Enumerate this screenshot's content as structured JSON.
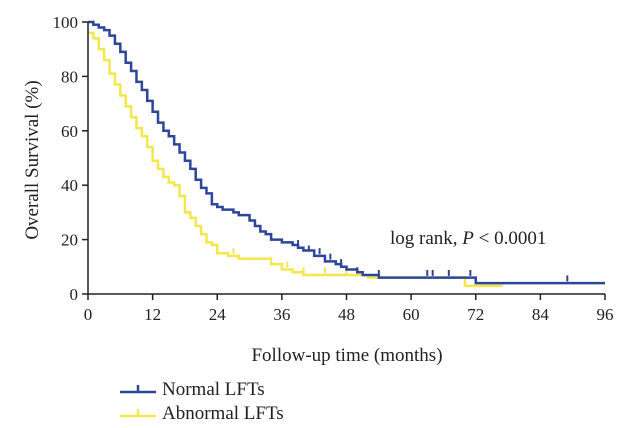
{
  "chart_data": {
    "type": "line",
    "ylabel": "Overall Survival (%)",
    "xlabel": "Follow-up time (months)",
    "xlim": [
      0,
      96
    ],
    "ylim": [
      0,
      100
    ],
    "x_ticks": [
      "0",
      "12",
      "24",
      "36",
      "48",
      "60",
      "72",
      "84",
      "96"
    ],
    "y_ticks": [
      "0",
      "20",
      "40",
      "60",
      "80",
      "100"
    ],
    "annotation": {
      "prefix": "log rank, ",
      "italic": "P",
      "suffix": " < 0.0001"
    },
    "series": [
      {
        "name": "Normal LFTs",
        "color": "#2e4699",
        "steps": [
          [
            0,
            100
          ],
          [
            1,
            99
          ],
          [
            2,
            98
          ],
          [
            3,
            97
          ],
          [
            4,
            95
          ],
          [
            5,
            92
          ],
          [
            6,
            89
          ],
          [
            7,
            85
          ],
          [
            8,
            82
          ],
          [
            9,
            78
          ],
          [
            10,
            75
          ],
          [
            11,
            71
          ],
          [
            12,
            67
          ],
          [
            13,
            63
          ],
          [
            14,
            60
          ],
          [
            15,
            58
          ],
          [
            16,
            55
          ],
          [
            17,
            52
          ],
          [
            18,
            49
          ],
          [
            19,
            46
          ],
          [
            20,
            42
          ],
          [
            21,
            39
          ],
          [
            22,
            37
          ],
          [
            23,
            33
          ],
          [
            24,
            32
          ],
          [
            25,
            31
          ],
          [
            27,
            30
          ],
          [
            28,
            29
          ],
          [
            30,
            27
          ],
          [
            31,
            25
          ],
          [
            32,
            23
          ],
          [
            33,
            22
          ],
          [
            34,
            20
          ],
          [
            36,
            19
          ],
          [
            38,
            18
          ],
          [
            39,
            17
          ],
          [
            40,
            16
          ],
          [
            42,
            14
          ],
          [
            44,
            12
          ],
          [
            46,
            11
          ],
          [
            47,
            10
          ],
          [
            48,
            9
          ],
          [
            50,
            8
          ],
          [
            51,
            7
          ],
          [
            54,
            6
          ],
          [
            72,
            4
          ],
          [
            96,
            4
          ]
        ],
        "censors": [
          [
            39,
            18
          ],
          [
            41,
            16
          ],
          [
            43,
            15
          ],
          [
            45,
            13
          ],
          [
            47,
            11
          ],
          [
            50,
            8
          ],
          [
            54,
            7
          ],
          [
            63,
            7
          ],
          [
            64,
            7
          ],
          [
            67,
            7
          ],
          [
            71,
            7
          ],
          [
            89,
            5
          ]
        ]
      },
      {
        "name": "Abnormal LFTs",
        "color": "#f2e84d",
        "steps": [
          [
            0,
            96
          ],
          [
            1,
            94
          ],
          [
            2,
            90
          ],
          [
            3,
            86
          ],
          [
            4,
            81
          ],
          [
            5,
            77
          ],
          [
            6,
            73
          ],
          [
            7,
            69
          ],
          [
            8,
            65
          ],
          [
            9,
            61
          ],
          [
            10,
            58
          ],
          [
            11,
            54
          ],
          [
            12,
            49
          ],
          [
            13,
            46
          ],
          [
            14,
            43
          ],
          [
            15,
            41
          ],
          [
            16,
            40
          ],
          [
            17,
            36
          ],
          [
            18,
            30
          ],
          [
            19,
            28
          ],
          [
            20,
            25
          ],
          [
            21,
            22
          ],
          [
            22,
            19
          ],
          [
            23,
            18
          ],
          [
            24,
            15
          ],
          [
            26,
            14
          ],
          [
            28,
            13
          ],
          [
            34,
            11
          ],
          [
            36,
            9
          ],
          [
            38,
            8
          ],
          [
            40,
            7
          ],
          [
            44,
            7
          ],
          [
            52,
            6
          ],
          [
            70,
            3
          ],
          [
            77,
            3
          ]
        ],
        "censors": [
          [
            27,
            15
          ],
          [
            37,
            10
          ],
          [
            40,
            8
          ],
          [
            44,
            8
          ],
          [
            48,
            7
          ]
        ]
      }
    ]
  },
  "legend": [
    {
      "label": "Normal LFTs",
      "color": "#2e4699"
    },
    {
      "label": "Abnormal LFTs",
      "color": "#f2e84d"
    }
  ]
}
